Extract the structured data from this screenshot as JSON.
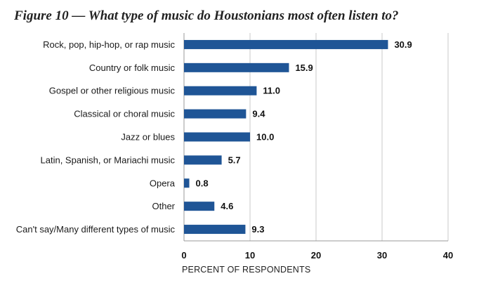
{
  "chart_data": {
    "type": "bar",
    "orientation": "horizontal",
    "title": "Figure 10 — What type of music do Houstonians most often listen to?",
    "xlabel": "PERCENT OF RESPONDENTS",
    "ylabel": "",
    "xlim": [
      0,
      40
    ],
    "xticks": [
      0,
      10,
      20,
      30,
      40
    ],
    "grid": true,
    "bar_color": "#1f5596",
    "categories": [
      "Rock, pop, hip-hop, or rap music",
      "Country or folk music",
      "Gospel or other religious music",
      "Classical or choral music",
      "Jazz or blues",
      "Latin, Spanish, or Mariachi music",
      "Opera",
      "Other",
      "Can't say/Many different types of music"
    ],
    "values": [
      30.9,
      15.9,
      11.0,
      9.4,
      10.0,
      5.7,
      0.8,
      4.6,
      9.3
    ],
    "value_labels": [
      "30.9",
      "15.9",
      "11.0",
      "9.4",
      "10.0",
      "5.7",
      "0.8",
      "4.6",
      "9.3"
    ]
  }
}
